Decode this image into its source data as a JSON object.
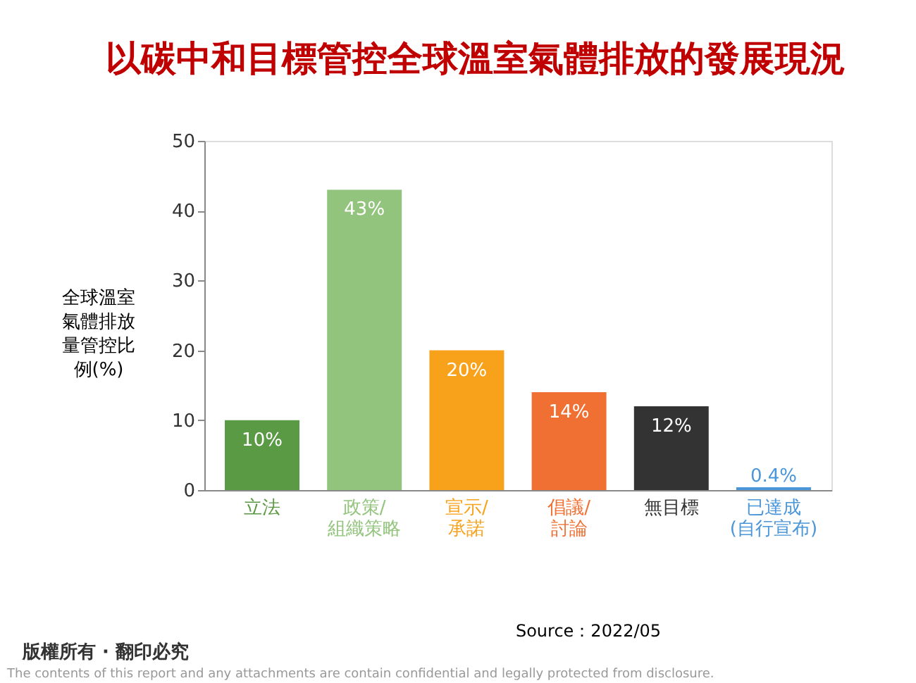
{
  "chart_data": {
    "type": "bar",
    "title": "以碳中和目標管控全球溫室氣體排放的發展現況",
    "ylabel": "全球溫室氣體排放量管控比例(%)",
    "categories": [
      "立法",
      "政策/\n組織策略",
      "宣示/\n承諾",
      "倡議/\n討論",
      "無目標",
      "已達成\n(自行宣布)"
    ],
    "values": [
      10,
      43,
      20,
      14,
      12,
      0.4
    ],
    "colors": [
      "#5b9a45",
      "#93c47d",
      "#f8a21c",
      "#f07033",
      "#333333",
      "#4a96d9"
    ],
    "value_labels": [
      "10%",
      "43%",
      "20%",
      "14%",
      "12%",
      "0.4%"
    ],
    "ylim": [
      0,
      50
    ],
    "yticks": [
      0,
      10,
      20,
      30,
      40,
      50
    ],
    "grid": false,
    "annotations": [
      "Source：2022/05",
      "版權所有 · 翻印必究",
      "The contents of this report and any attachments are contain confidential and legally protected from disclosure."
    ]
  }
}
